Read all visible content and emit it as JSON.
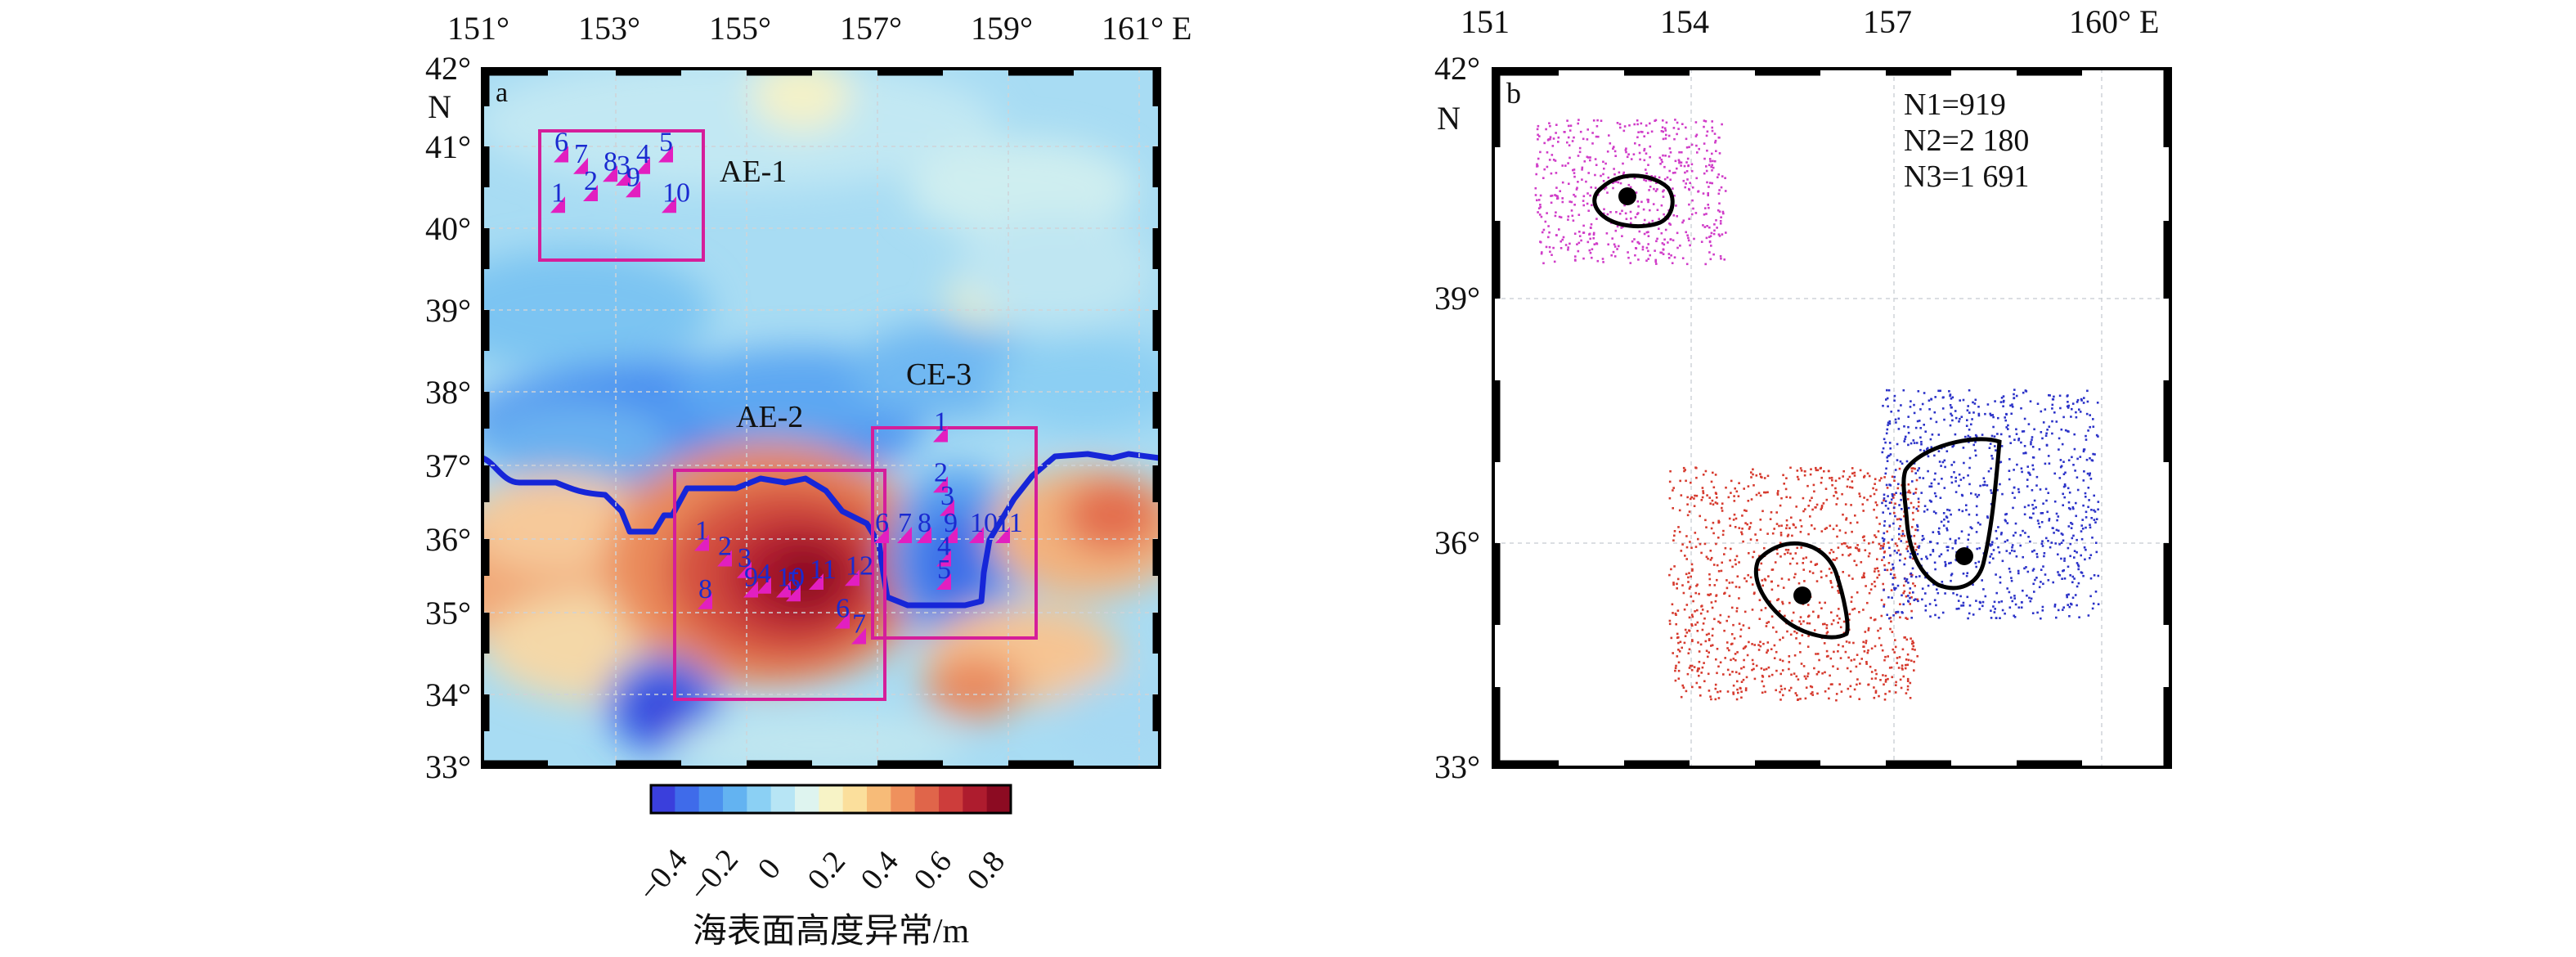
{
  "panel_a": {
    "label": "a",
    "x_ticks": [
      "151°",
      "153°",
      "155°",
      "157°",
      "159°",
      "161° E"
    ],
    "y_ticks": [
      "42°",
      "41°",
      "40°",
      "39°",
      "38°",
      "37°",
      "36°",
      "35°",
      "34°",
      "33°"
    ],
    "y_north": "N",
    "regions": [
      "AE-1",
      "AE-2",
      "CE-3"
    ],
    "stations": {
      "ae1": [
        {
          "n": "6",
          "lon": 152.2,
          "lat": 40.9
        },
        {
          "n": "7",
          "lon": 152.5,
          "lat": 40.75
        },
        {
          "n": "8",
          "lon": 152.95,
          "lat": 40.65
        },
        {
          "n": "3",
          "lon": 153.15,
          "lat": 40.6
        },
        {
          "n": "4",
          "lon": 153.45,
          "lat": 40.75
        },
        {
          "n": "5",
          "lon": 153.8,
          "lat": 40.9
        },
        {
          "n": "2",
          "lon": 152.65,
          "lat": 40.4
        },
        {
          "n": "9",
          "lon": 153.3,
          "lat": 40.45
        },
        {
          "n": "1",
          "lon": 152.15,
          "lat": 40.25
        },
        {
          "n": "10",
          "lon": 153.85,
          "lat": 40.25
        }
      ],
      "ae2": [
        {
          "n": "1",
          "lon": 154.35,
          "lat": 35.9
        },
        {
          "n": "2",
          "lon": 154.7,
          "lat": 35.7
        },
        {
          "n": "3",
          "lon": 155.0,
          "lat": 35.55
        },
        {
          "n": "9",
          "lon": 155.1,
          "lat": 35.3
        },
        {
          "n": "4",
          "lon": 155.3,
          "lat": 35.35
        },
        {
          "n": "10",
          "lon": 155.6,
          "lat": 35.3
        },
        {
          "n": "5",
          "lon": 155.75,
          "lat": 35.25
        },
        {
          "n": "11",
          "lon": 156.1,
          "lat": 35.4
        },
        {
          "n": "12",
          "lon": 156.65,
          "lat": 35.45
        },
        {
          "n": "8",
          "lon": 154.4,
          "lat": 35.15
        },
        {
          "n": "6",
          "lon": 156.5,
          "lat": 34.9
        },
        {
          "n": "7",
          "lon": 156.75,
          "lat": 34.7
        }
      ],
      "ce3": [
        {
          "n": "1",
          "lon": 158.0,
          "lat": 37.3
        },
        {
          "n": "2",
          "lon": 158.0,
          "lat": 36.65
        },
        {
          "n": "3",
          "lon": 158.1,
          "lat": 36.35
        },
        {
          "n": "6",
          "lon": 157.1,
          "lat": 36.0
        },
        {
          "n": "7",
          "lon": 157.45,
          "lat": 36.0
        },
        {
          "n": "8",
          "lon": 157.75,
          "lat": 36.0
        },
        {
          "n": "9",
          "lon": 158.15,
          "lat": 36.0
        },
        {
          "n": "10",
          "lon": 158.55,
          "lat": 36.0
        },
        {
          "n": "11",
          "lon": 158.95,
          "lat": 36.0
        },
        {
          "n": "4",
          "lon": 158.05,
          "lat": 35.7
        },
        {
          "n": "5",
          "lon": 158.05,
          "lat": 35.4
        }
      ]
    },
    "colorbar": {
      "ticks": [
        "−0.4",
        "−0.2",
        "0",
        "0.2",
        "0.4",
        "0.6",
        "0.8"
      ],
      "title": "海表面高度异常/m",
      "colors": [
        "#3a3fdc",
        "#3f6bea",
        "#4c92ee",
        "#63b3f1",
        "#8bd0f4",
        "#b7e5f5",
        "#def4ef",
        "#f7f3c6",
        "#fbdf9c",
        "#f7bb78",
        "#ef915d",
        "#e0654a",
        "#cd3d3b",
        "#ae1c2e",
        "#8c0b22"
      ]
    }
  },
  "panel_b": {
    "label": "b",
    "x_ticks": [
      "151",
      "154",
      "157",
      "160° E"
    ],
    "y_ticks": [
      "42°",
      "39°",
      "36°",
      "33°"
    ],
    "y_north": "N",
    "counts": [
      "N1=919",
      "N2=2 180",
      "N3=1 691"
    ],
    "colors": {
      "group1": "#d03cc8",
      "group2": "#d63a2e",
      "group3": "#2b32c8"
    }
  }
}
